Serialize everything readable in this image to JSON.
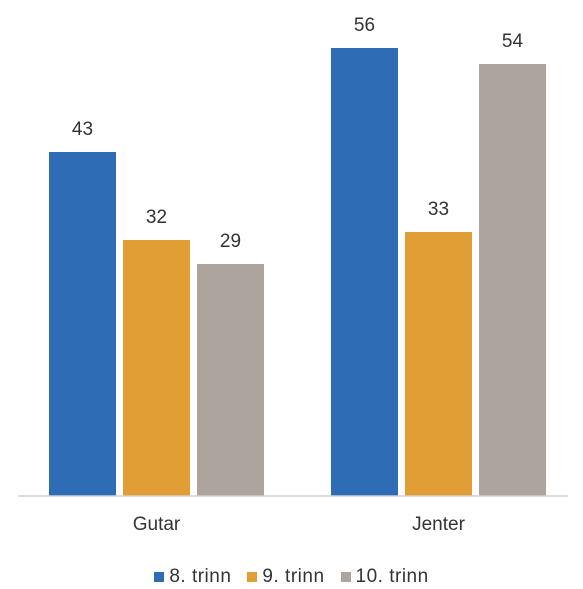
{
  "chart_data": {
    "type": "bar",
    "categories": [
      "Gutar",
      "Jenter"
    ],
    "series": [
      {
        "name": "8. trinn",
        "values": [
          43,
          56
        ],
        "color": "#2E6DB5"
      },
      {
        "name": "9. trinn",
        "values": [
          32,
          33
        ],
        "color": "#E09E34"
      },
      {
        "name": "10. trinn",
        "values": [
          29,
          54
        ],
        "color": "#ADA49E"
      }
    ],
    "title": "",
    "xlabel": "",
    "ylabel": "",
    "ylim": [
      0,
      57
    ],
    "grid": false,
    "data_labels": true,
    "legend_position": "bottom"
  }
}
